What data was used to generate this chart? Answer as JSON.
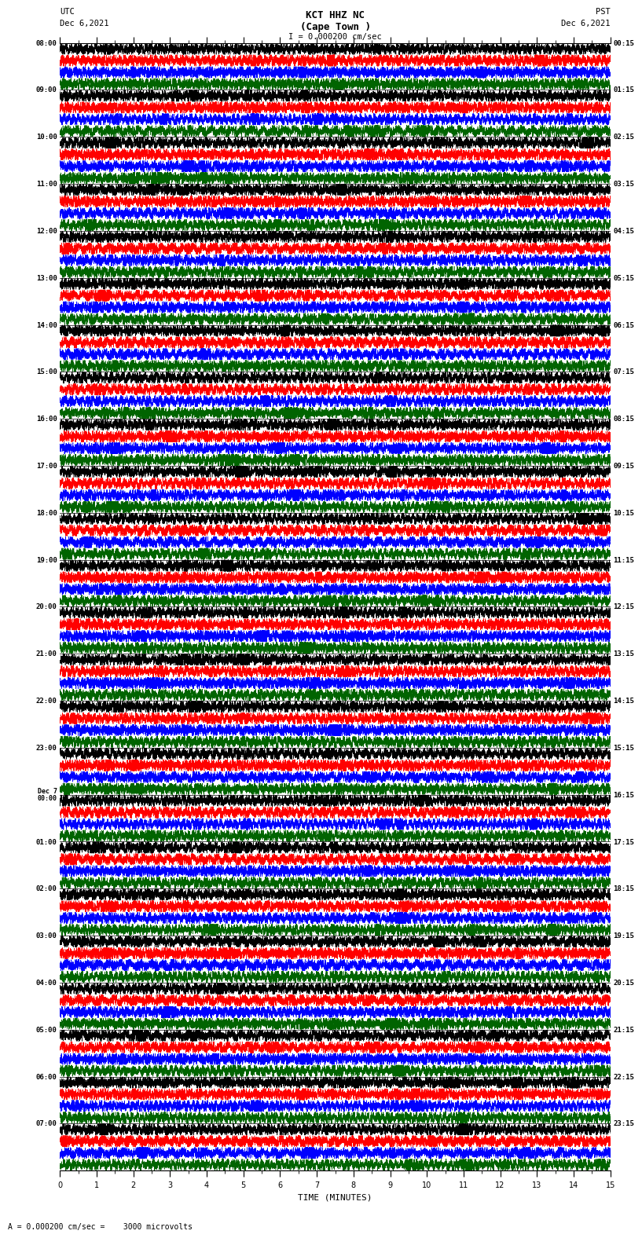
{
  "title_line1": "KCT HHZ NC",
  "title_line2": "(Cape Town )",
  "scale_bar": "I = 0.000200 cm/sec",
  "label_left_top": "UTC",
  "label_left_date": "Dec 6,2021",
  "label_right_top": "PST",
  "label_right_date": "Dec 6,2021",
  "left_times_utc": [
    "08:00",
    "09:00",
    "10:00",
    "11:00",
    "12:00",
    "13:00",
    "14:00",
    "15:00",
    "16:00",
    "17:00",
    "18:00",
    "19:00",
    "20:00",
    "21:00",
    "22:00",
    "23:00",
    "Dec 7\n00:00",
    "01:00",
    "02:00",
    "03:00",
    "04:00",
    "05:00",
    "06:00",
    "07:00"
  ],
  "right_times_pst": [
    "00:15",
    "01:15",
    "02:15",
    "03:15",
    "04:15",
    "05:15",
    "06:15",
    "07:15",
    "08:15",
    "09:15",
    "10:15",
    "11:15",
    "12:15",
    "13:15",
    "14:15",
    "15:15",
    "16:15",
    "17:15",
    "18:15",
    "19:15",
    "20:15",
    "21:15",
    "22:15",
    "23:15"
  ],
  "n_rows": 24,
  "n_cols": 4,
  "time_minutes": 15,
  "scale_label": "= 0.000200 cm/sec =    3000 microvolts",
  "colors": [
    "#000000",
    "#ff0000",
    "#0000ff",
    "#006400"
  ],
  "fig_width": 8.5,
  "fig_height": 16.13,
  "background": "#ffffff",
  "xlabel": "TIME (MINUTES)",
  "xlim": [
    0,
    15
  ],
  "xticks": [
    0,
    1,
    2,
    3,
    4,
    5,
    6,
    7,
    8,
    9,
    10,
    11,
    12,
    13,
    14,
    15
  ]
}
